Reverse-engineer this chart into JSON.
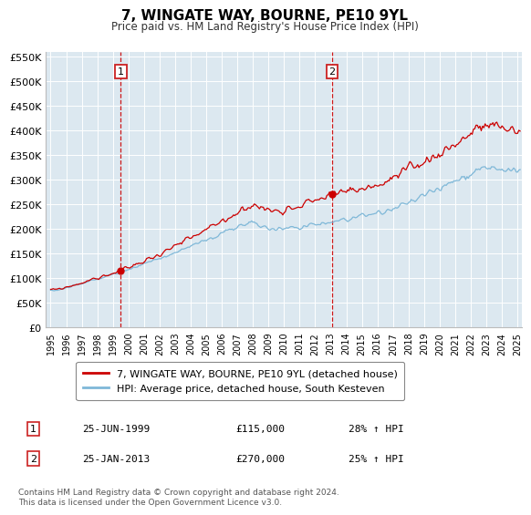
{
  "title": "7, WINGATE WAY, BOURNE, PE10 9YL",
  "subtitle": "Price paid vs. HM Land Registry's House Price Index (HPI)",
  "sale1_price": 115000,
  "sale1_display": "25-JUN-1999",
  "sale1_year": 1999,
  "sale1_month": 6,
  "sale1_hpi_pct": "28% ↑ HPI",
  "sale2_price": 270000,
  "sale2_display": "25-JAN-2013",
  "sale2_year": 2013,
  "sale2_month": 1,
  "sale2_hpi_pct": "25% ↑ HPI",
  "hpi_line_color": "#7fb8d8",
  "sale_line_color": "#cc0000",
  "vline_color": "#cc0000",
  "plot_bg": "#dce8f0",
  "ylim": [
    0,
    560000
  ],
  "yticks": [
    0,
    50000,
    100000,
    150000,
    200000,
    250000,
    300000,
    350000,
    400000,
    450000,
    500000,
    550000
  ],
  "xlim_start": 1994.7,
  "xlim_end": 2025.3,
  "legend_entry1": "7, WINGATE WAY, BOURNE, PE10 9YL (detached house)",
  "legend_entry2": "HPI: Average price, detached house, South Kesteven",
  "footer": "Contains HM Land Registry data © Crown copyright and database right 2024.\nThis data is licensed under the Open Government Licence v3.0.",
  "box_color": "#cc2222"
}
